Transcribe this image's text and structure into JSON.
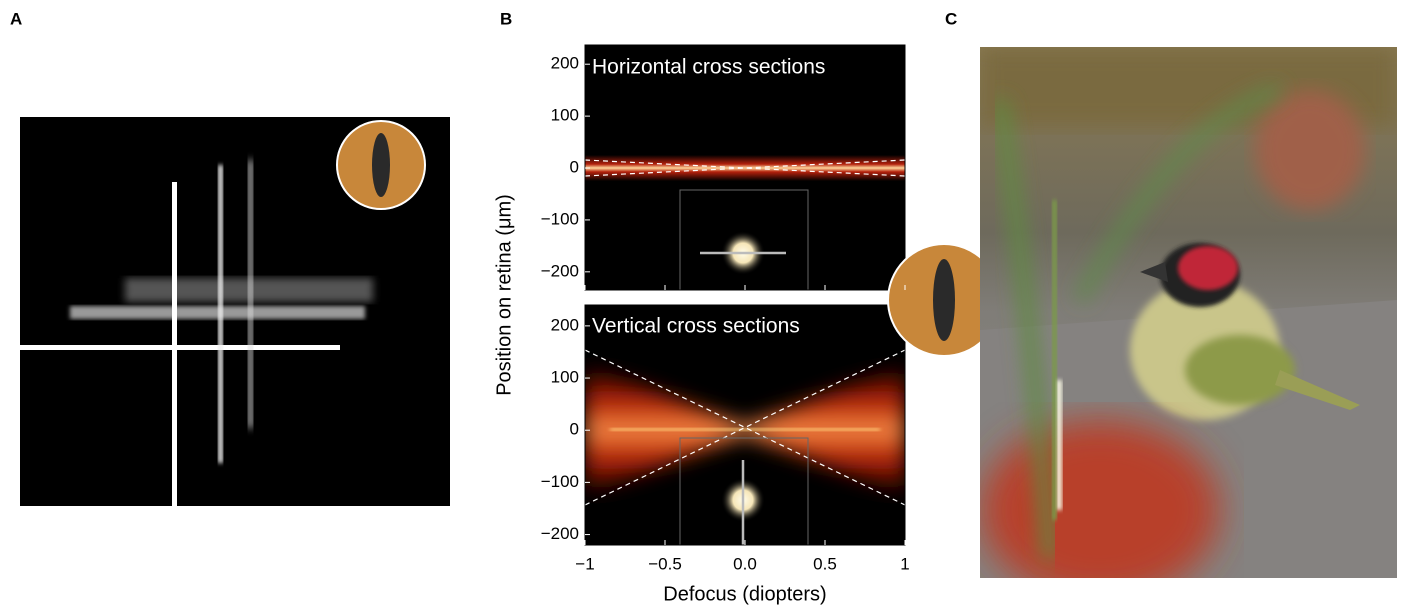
{
  "panels": {
    "a": {
      "label": "A"
    },
    "b": {
      "label": "B"
    },
    "c": {
      "label": "C"
    }
  },
  "panel_b": {
    "xlabel": "Defocus (diopters)",
    "ylabel": "Position on retina (μm)",
    "xlim": [
      -1,
      1
    ],
    "xticks": [
      {
        "value": -1,
        "label": "−1"
      },
      {
        "value": -0.5,
        "label": "−0.5"
      },
      {
        "value": 0,
        "label": "0.0"
      },
      0.5,
      1
    ],
    "top_plot": {
      "title": "Horizontal cross sections",
      "ylim": [
        -235,
        237
      ],
      "yticks": [
        200,
        100,
        0,
        {
          "value": -100,
          "label": "−100"
        },
        {
          "value": -200,
          "label": "−200"
        }
      ]
    },
    "bottom_plot": {
      "title": "Vertical cross sections",
      "ylim": [
        -220,
        240
      ],
      "yticks": [
        200,
        100,
        0,
        {
          "value": -100,
          "label": "−100"
        },
        {
          "value": -200,
          "label": "−200"
        }
      ]
    }
  }
}
